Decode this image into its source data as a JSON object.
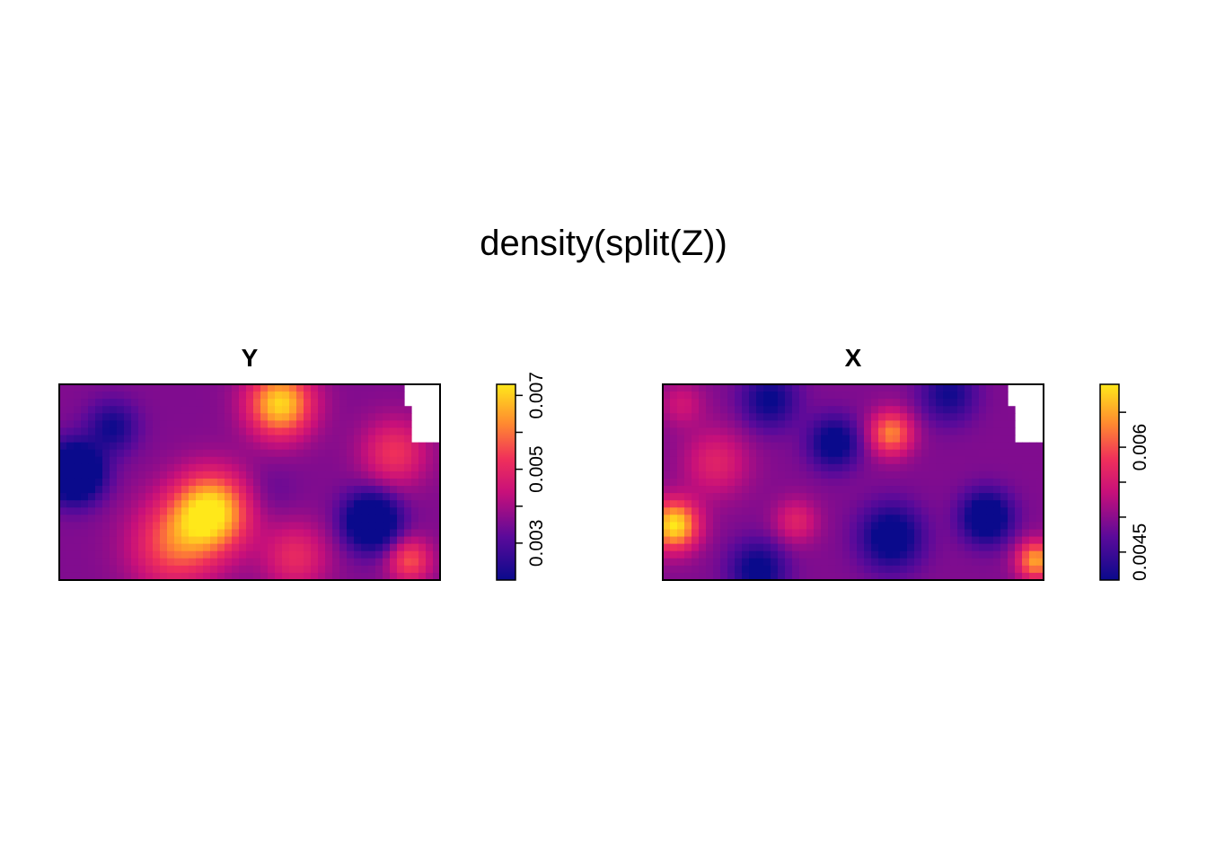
{
  "figure": {
    "title": "density(split(Z))"
  },
  "colors": {
    "palette_low": "#0a0a8c",
    "palette_mid": "#e8206a",
    "palette_high": "#ffe81a",
    "background": "#ffffff",
    "frame": "#000000"
  },
  "chart_data": [
    {
      "type": "heatmap",
      "title": "Y",
      "colorbar": {
        "range": [
          0.002,
          0.0073
        ],
        "ticks": [
          0.003,
          0.004,
          0.005,
          0.006,
          0.007
        ],
        "tick_labels": [
          "0.003",
          "",
          "0.005",
          "",
          "0.007"
        ]
      },
      "blobs": [
        {
          "x": 0.4,
          "y": 0.65,
          "amp": 1.0,
          "s": 0.14
        },
        {
          "x": 0.58,
          "y": 0.1,
          "amp": 0.95,
          "s": 0.12
        },
        {
          "x": 0.3,
          "y": 0.82,
          "amp": 0.55,
          "s": 0.16
        },
        {
          "x": 0.88,
          "y": 0.35,
          "amp": 0.45,
          "s": 0.12
        },
        {
          "x": 0.62,
          "y": 0.88,
          "amp": 0.4,
          "s": 0.12
        },
        {
          "x": 0.92,
          "y": 0.9,
          "amp": 0.55,
          "s": 0.08
        },
        {
          "x": 0.04,
          "y": 0.45,
          "amp": -1.0,
          "s": 0.1
        },
        {
          "x": 0.82,
          "y": 0.7,
          "amp": -0.85,
          "s": 0.1
        },
        {
          "x": 0.14,
          "y": 0.22,
          "amp": -0.4,
          "s": 0.09
        },
        {
          "x": 0.55,
          "y": 0.55,
          "amp": -0.1,
          "s": 0.1
        }
      ],
      "base": 0.3
    },
    {
      "type": "heatmap",
      "title": "X",
      "colorbar": {
        "range": [
          0.0041,
          0.0069
        ],
        "ticks": [
          0.0045,
          0.005,
          0.0055,
          0.006,
          0.0065
        ],
        "tick_labels": [
          "0.0045",
          "",
          "",
          "0.006",
          ""
        ]
      },
      "blobs": [
        {
          "x": 0.03,
          "y": 0.72,
          "amp": 1.0,
          "s": 0.09
        },
        {
          "x": 0.6,
          "y": 0.25,
          "amp": 0.7,
          "s": 0.08
        },
        {
          "x": 0.14,
          "y": 0.4,
          "amp": 0.35,
          "s": 0.12
        },
        {
          "x": 0.35,
          "y": 0.7,
          "amp": 0.35,
          "s": 0.08
        },
        {
          "x": 0.98,
          "y": 0.9,
          "amp": 0.8,
          "s": 0.07
        },
        {
          "x": 0.05,
          "y": 0.1,
          "amp": 0.25,
          "s": 0.08
        },
        {
          "x": 0.45,
          "y": 0.3,
          "amp": -0.55,
          "s": 0.09
        },
        {
          "x": 0.6,
          "y": 0.78,
          "amp": -0.6,
          "s": 0.11
        },
        {
          "x": 0.85,
          "y": 0.68,
          "amp": -0.7,
          "s": 0.09
        },
        {
          "x": 0.28,
          "y": 0.08,
          "amp": -0.45,
          "s": 0.1
        },
        {
          "x": 0.75,
          "y": 0.05,
          "amp": -0.4,
          "s": 0.1
        },
        {
          "x": 0.25,
          "y": 0.95,
          "amp": -0.5,
          "s": 0.1
        }
      ],
      "base": 0.3
    }
  ]
}
